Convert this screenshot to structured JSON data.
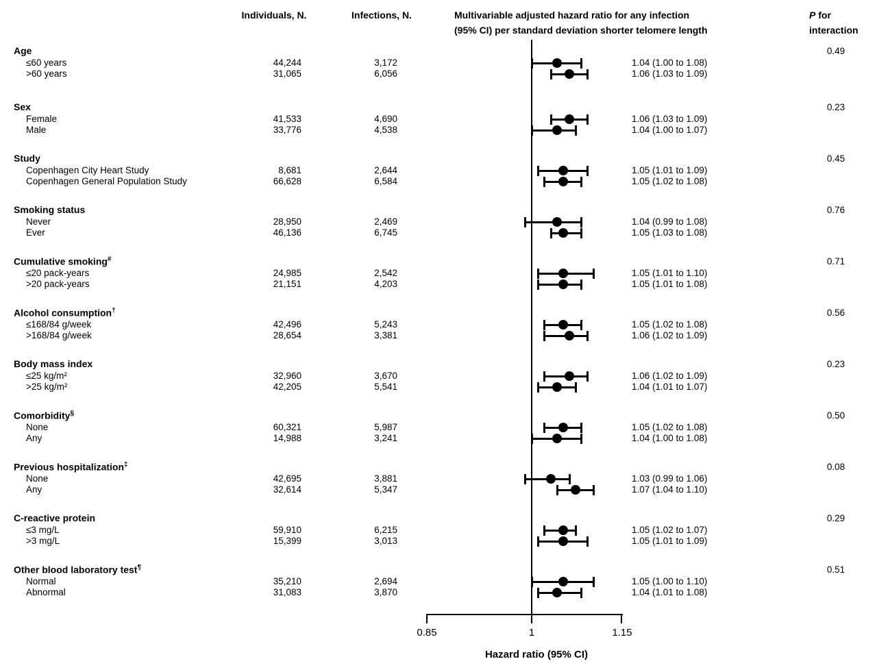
{
  "chart_data": {
    "type": "forest",
    "header": {
      "individuals": "Individuals, N.",
      "infections": "Infections, N.",
      "hr_line1": "Multivariable adjusted hazard ratio for any infection",
      "hr_line2": "(95% CI) per standard deviation shorter telomere length",
      "p_italic": "P",
      "p_rest": " for",
      "p_line2": "interaction"
    },
    "axis": {
      "scale": "log",
      "min": 0.85,
      "max": 1.15,
      "ticks": [
        0.85,
        1,
        1.15
      ],
      "tick_labels": [
        "0.85",
        "1",
        "1.15"
      ],
      "reference_value": 1,
      "xlabel": "Hazard ratio (95% CI)"
    },
    "groups": [
      {
        "label": "Age",
        "mark": "",
        "p": "0.49",
        "rows": [
          {
            "label": "≤60 years",
            "individuals": "44,244",
            "infections": "3,172",
            "hr": 1.04,
            "lo": 1.0,
            "hi": 1.08,
            "hr_text": "1.04 (1.00 to 1.08)"
          },
          {
            "label": ">60 years",
            "individuals": "31,065",
            "infections": "6,056",
            "hr": 1.06,
            "lo": 1.03,
            "hi": 1.09,
            "hr_text": "1.06 (1.03 to 1.09)"
          }
        ]
      },
      {
        "label": "Sex",
        "mark": "",
        "p": "0.23",
        "rows": [
          {
            "label": "Female",
            "individuals": "41,533",
            "infections": "4,690",
            "hr": 1.06,
            "lo": 1.03,
            "hi": 1.09,
            "hr_text": "1.06 (1.03 to 1.09)"
          },
          {
            "label": "Male",
            "individuals": "33,776",
            "infections": "4,538",
            "hr": 1.04,
            "lo": 1.0,
            "hi": 1.07,
            "hr_text": "1.04 (1.00 to 1.07)"
          }
        ]
      },
      {
        "label": "Study",
        "mark": "",
        "p": "0.45",
        "rows": [
          {
            "label": "Copenhagen City Heart Study",
            "individuals": "8,681",
            "infections": "2,644",
            "hr": 1.05,
            "lo": 1.01,
            "hi": 1.09,
            "hr_text": "1.05 (1.01 to 1.09)"
          },
          {
            "label": "Copenhagen General Population Study",
            "individuals": "66,628",
            "infections": "6,584",
            "hr": 1.05,
            "lo": 1.02,
            "hi": 1.08,
            "hr_text": "1.05 (1.02 to 1.08)"
          }
        ]
      },
      {
        "label": "Smoking status",
        "mark": "",
        "p": "0.76",
        "rows": [
          {
            "label": "Never",
            "individuals": "28,950",
            "infections": "2,469",
            "hr": 1.04,
            "lo": 0.99,
            "hi": 1.08,
            "hr_text": "1.04 (0.99 to 1.08)"
          },
          {
            "label": "Ever",
            "individuals": "46,136",
            "infections": "6,745",
            "hr": 1.05,
            "lo": 1.03,
            "hi": 1.08,
            "hr_text": "1.05 (1.03 to 1.08)"
          }
        ]
      },
      {
        "label": "Cumulative smoking",
        "mark": "#",
        "p": "0.71",
        "rows": [
          {
            "label": "≤20 pack-years",
            "individuals": "24,985",
            "infections": "2,542",
            "hr": 1.05,
            "lo": 1.01,
            "hi": 1.1,
            "hr_text": "1.05 (1.01 to 1.10)"
          },
          {
            "label": ">20 pack-years",
            "individuals": "21,151",
            "infections": "4,203",
            "hr": 1.05,
            "lo": 1.01,
            "hi": 1.08,
            "hr_text": "1.05 (1.01 to 1.08)"
          }
        ]
      },
      {
        "label": "Alcohol consumption",
        "mark": "†",
        "p": "0.56",
        "rows": [
          {
            "label": "≤168/84 g/week",
            "individuals": "42,496",
            "infections": "5,243",
            "hr": 1.05,
            "lo": 1.02,
            "hi": 1.08,
            "hr_text": "1.05 (1.02 to 1.08)"
          },
          {
            "label": ">168/84 g/week",
            "individuals": "28,654",
            "infections": "3,381",
            "hr": 1.06,
            "lo": 1.02,
            "hi": 1.09,
            "hr_text": "1.06 (1.02 to 1.09)"
          }
        ]
      },
      {
        "label": "Body mass index",
        "mark": "",
        "p": "0.23",
        "rows": [
          {
            "label": "≤25 kg/m²",
            "individuals": "32,960",
            "infections": "3,670",
            "hr": 1.06,
            "lo": 1.02,
            "hi": 1.09,
            "hr_text": "1.06 (1.02 to 1.09)"
          },
          {
            "label": ">25 kg/m²",
            "individuals": "42,205",
            "infections": "5,541",
            "hr": 1.04,
            "lo": 1.01,
            "hi": 1.07,
            "hr_text": "1.04 (1.01 to 1.07)"
          }
        ]
      },
      {
        "label": "Comorbidity",
        "mark": "§",
        "p": "0.50",
        "rows": [
          {
            "label": "None",
            "individuals": "60,321",
            "infections": "5,987",
            "hr": 1.05,
            "lo": 1.02,
            "hi": 1.08,
            "hr_text": "1.05 (1.02 to 1.08)"
          },
          {
            "label": "Any",
            "individuals": "14,988",
            "infections": "3,241",
            "hr": 1.04,
            "lo": 1.0,
            "hi": 1.08,
            "hr_text": "1.04 (1.00 to 1.08)"
          }
        ]
      },
      {
        "label": "Previous hospitalization",
        "mark": "‡",
        "p": "0.08",
        "rows": [
          {
            "label": "None",
            "individuals": "42,695",
            "infections": "3,881",
            "hr": 1.03,
            "lo": 0.99,
            "hi": 1.06,
            "hr_text": "1.03 (0.99 to 1.06)"
          },
          {
            "label": "Any",
            "individuals": "32,614",
            "infections": "5,347",
            "hr": 1.07,
            "lo": 1.04,
            "hi": 1.1,
            "hr_text": "1.07 (1.04 to 1.10)"
          }
        ]
      },
      {
        "label": "C-reactive protein",
        "mark": "",
        "p": "0.29",
        "rows": [
          {
            "label": "≤3 mg/L",
            "individuals": "59,910",
            "infections": "6,215",
            "hr": 1.05,
            "lo": 1.02,
            "hi": 1.07,
            "hr_text": "1.05 (1.02 to 1.07)"
          },
          {
            "label": ">3 mg/L",
            "individuals": "15,399",
            "infections": "3,013",
            "hr": 1.05,
            "lo": 1.01,
            "hi": 1.09,
            "hr_text": "1.05 (1.01 to 1.09)"
          }
        ]
      },
      {
        "label": "Other blood laboratory test",
        "mark": "¶",
        "p": "0.51",
        "rows": [
          {
            "label": "Normal",
            "individuals": "35,210",
            "infections": "2,694",
            "hr": 1.05,
            "lo": 1.0,
            "hi": 1.1,
            "hr_text": "1.05 (1.00 to 1.10)"
          },
          {
            "label": "Abnormal",
            "individuals": "31,083",
            "infections": "3,870",
            "hr": 1.04,
            "lo": 1.01,
            "hi": 1.08,
            "hr_text": "1.04 (1.01 to 1.08)"
          }
        ]
      }
    ],
    "colors": {
      "marker": "#000000",
      "text": "#000000",
      "background": "#ffffff"
    }
  }
}
